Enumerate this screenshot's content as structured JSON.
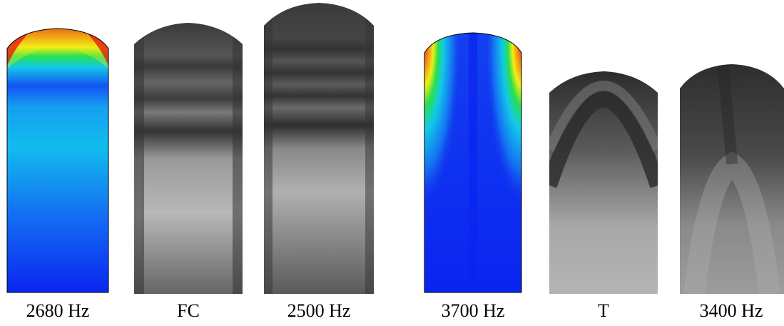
{
  "labels": {
    "p1": "2680 Hz",
    "p2": "FC",
    "p3": "2500 Hz",
    "p4": "3700 Hz",
    "p5": "T",
    "p6": "3400 Hz"
  },
  "colors": {
    "background": "#ffffff",
    "fem_blue": "#0a24f0",
    "fem_cyan": "#12b8ee",
    "fem_red": "#e81a10",
    "fem_yellow": "#f2ee14",
    "fem_green": "#28e050",
    "photo_dark": "#333333",
    "photo_light": "#b8b8b8"
  }
}
